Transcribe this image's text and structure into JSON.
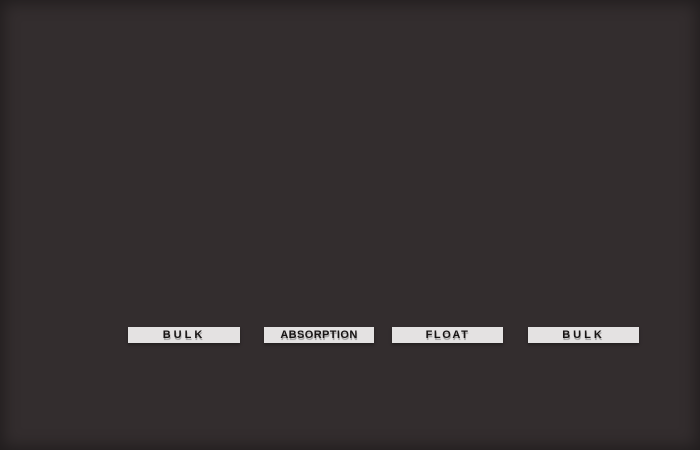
{
  "frame": {
    "background_color": "#332d2e",
    "label_background_color": "#e4e2e2",
    "label_text_color": "#171414"
  },
  "stages": [
    {
      "label": "BULK"
    },
    {
      "label": "ABSORPTION"
    },
    {
      "label": "FLOAT"
    },
    {
      "label": "BULK"
    }
  ]
}
